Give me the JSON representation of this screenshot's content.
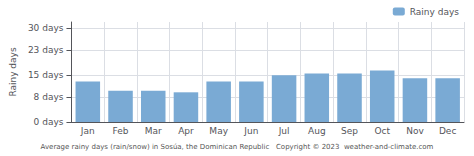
{
  "chart_data": {
    "type": "bar",
    "ylabel": "Rainy days",
    "xlabel": "Average rainy days (rain/snow) in Sosúa, the Dominican Republic   Copyright © 2023  weather-and-climate.com",
    "categories": [
      "Jan",
      "Feb",
      "Mar",
      "Apr",
      "May",
      "Jun",
      "Jul",
      "Aug",
      "Sep",
      "Oct",
      "Nov",
      "Dec"
    ],
    "series": [
      {
        "name": "Rainy days",
        "color": "#7aaad4",
        "values": [
          13,
          10,
          10,
          9.5,
          13,
          13,
          15,
          15.5,
          15.5,
          16.5,
          14,
          14
        ]
      }
    ],
    "ylim": [
      0,
      32
    ],
    "yticks": [
      {
        "value": 0,
        "label": "0 days"
      },
      {
        "value": 8,
        "label": "8 days"
      },
      {
        "value": 15,
        "label": "15 days"
      },
      {
        "value": 23,
        "label": "23 days"
      },
      {
        "value": 30,
        "label": "30 days"
      }
    ],
    "grid": true,
    "legend": "upper right"
  }
}
